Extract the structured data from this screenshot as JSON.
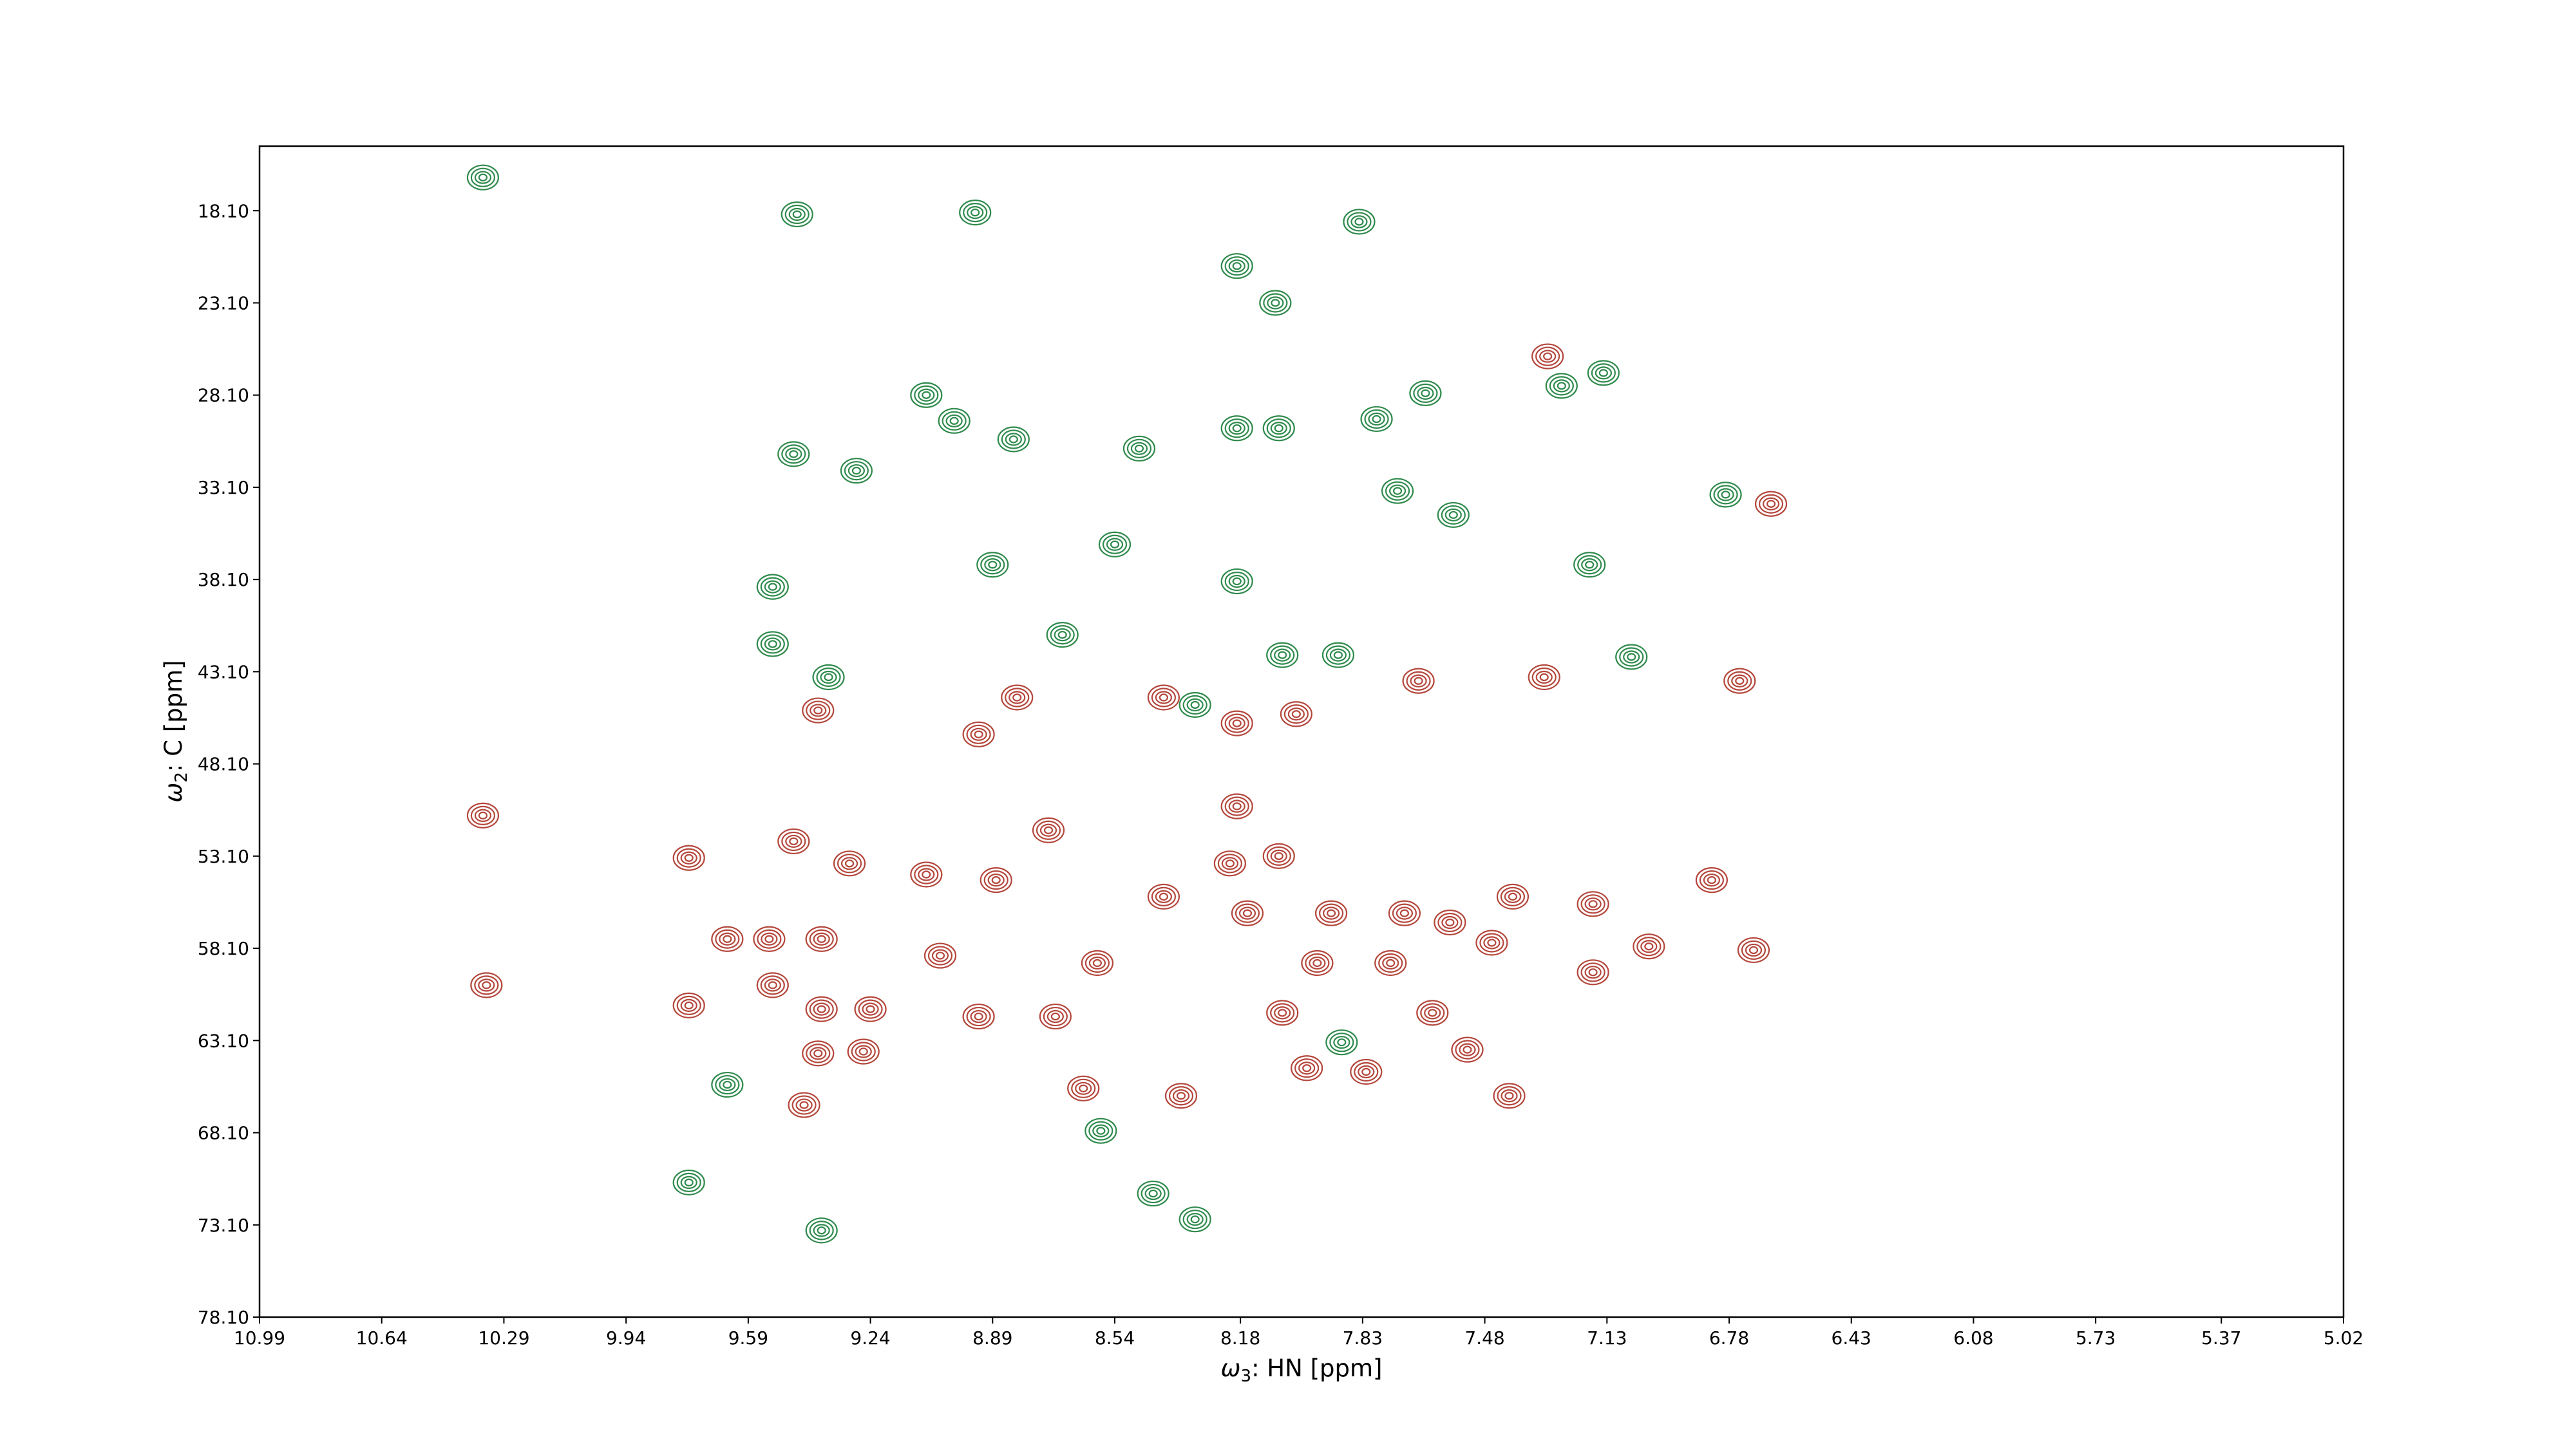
{
  "chart_data": {
    "type": "contour",
    "x_label": {
      "symbol": "ω",
      "subscript": "3",
      "text": ": HN [ppm]"
    },
    "y_label": {
      "symbol": "ω",
      "subscript": "2",
      "text": ": C [ppm]"
    },
    "xlim": [
      10.99,
      5.02
    ],
    "ylim": [
      78.1,
      14.6
    ],
    "xticks": [
      10.99,
      10.64,
      10.29,
      9.94,
      9.59,
      9.24,
      8.89,
      8.54,
      8.18,
      7.83,
      7.48,
      7.13,
      6.78,
      6.43,
      6.08,
      5.73,
      5.37,
      5.02
    ],
    "yticks": [
      {
        "value": 18.1,
        "label": "18.10"
      },
      {
        "value": 23.1,
        "label": "23.10"
      },
      {
        "value": 28.1,
        "label": "28.10"
      },
      {
        "value": 33.1,
        "label": "33.10"
      },
      {
        "value": 38.1,
        "label": "38.10"
      },
      {
        "value": 43.1,
        "label": "43.10"
      },
      {
        "value": 48.1,
        "label": "48.10"
      },
      {
        "value": 53.1,
        "label": "53.10"
      },
      {
        "value": 58.1,
        "label": "58.10"
      },
      {
        "value": 63.1,
        "label": "63.10"
      },
      {
        "value": 68.1,
        "label": "68.10"
      },
      {
        "value": 73.1,
        "label": "73.10"
      },
      {
        "value": 78.1,
        "label": "78.10"
      }
    ],
    "series": [
      {
        "color": "#b4473c",
        "x": [
          10.35,
          10.34,
          9.76,
          9.65,
          9.53,
          9.46,
          9.3,
          9.38,
          9.52,
          9.76,
          9.24,
          9.38,
          9.39,
          9.26,
          9.43,
          9.39,
          8.93,
          9.08,
          9.04,
          8.73,
          8.88,
          8.93,
          8.71,
          8.59,
          8.4,
          8.19,
          8.21,
          8.07,
          8.16,
          7.92,
          7.96,
          7.75,
          7.71,
          8.06,
          7.58,
          7.46,
          7.4,
          7.63,
          7.82,
          7.99,
          7.53,
          7.41,
          8.35,
          8.63,
          7.17,
          7.01,
          7.17,
          6.83,
          6.71,
          8.82,
          8.4,
          8.19,
          8.02,
          7.67,
          7.31,
          6.75,
          6.66,
          7.3
        ],
        "values": [
          50.9,
          60.1,
          53.2,
          57.6,
          57.6,
          52.3,
          53.5,
          57.6,
          60.1,
          61.2,
          61.4,
          61.4,
          63.8,
          63.7,
          66.6,
          45.2,
          46.5,
          54.1,
          58.5,
          51.7,
          54.4,
          61.8,
          61.8,
          58.9,
          55.3,
          50.4,
          53.5,
          53.1,
          56.2,
          56.2,
          58.9,
          58.9,
          56.2,
          61.6,
          56.7,
          57.8,
          55.3,
          61.6,
          64.8,
          64.6,
          63.6,
          66.1,
          66.1,
          65.7,
          55.7,
          58.0,
          59.4,
          54.4,
          58.2,
          44.5,
          44.5,
          45.9,
          45.4,
          43.6,
          43.4,
          43.6,
          34.0,
          26.0
        ]
      },
      {
        "color": "#2f8a4c",
        "x": [
          8.94,
          8.19,
          8.08,
          7.84,
          9.45,
          9.08,
          9.0,
          9.46,
          9.28,
          8.83,
          8.47,
          8.19,
          8.07,
          7.79,
          7.65,
          7.26,
          7.14,
          7.73,
          7.57,
          6.79,
          7.18,
          9.52,
          8.89,
          8.54,
          8.19,
          8.06,
          7.9,
          9.36,
          9.52,
          8.69,
          8.31,
          7.06,
          9.65,
          9.76,
          9.38,
          8.58,
          8.31,
          8.43,
          7.89,
          10.35
        ],
        "values": [
          18.2,
          21.1,
          23.1,
          18.7,
          18.3,
          28.1,
          29.5,
          31.3,
          32.2,
          30.5,
          31.0,
          29.9,
          29.9,
          29.4,
          28.0,
          27.6,
          26.9,
          33.3,
          34.6,
          33.5,
          37.3,
          38.5,
          37.3,
          36.2,
          38.2,
          42.2,
          42.2,
          43.4,
          41.6,
          41.1,
          44.9,
          42.3,
          65.5,
          70.8,
          73.4,
          68.0,
          72.8,
          71.4,
          63.2,
          16.3
        ]
      }
    ]
  }
}
